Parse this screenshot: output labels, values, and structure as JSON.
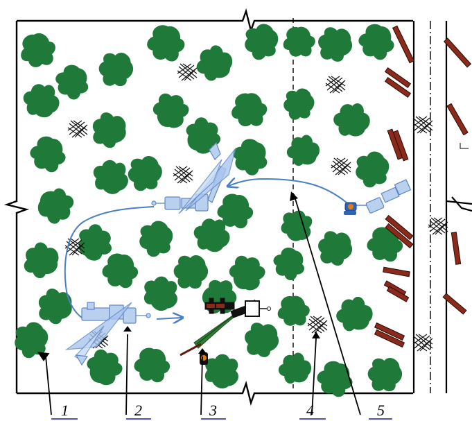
{
  "labels": [
    {
      "id": "1",
      "text": "1"
    },
    {
      "id": "2",
      "text": "2"
    },
    {
      "id": "3",
      "text": "3"
    },
    {
      "id": "4",
      "text": "4"
    },
    {
      "id": "5",
      "text": "5"
    }
  ],
  "colors": {
    "tree_crown": "#1f7a3a",
    "log": "#8a2a1a",
    "log_outline": "#2a0c05",
    "machine_ghost": "#9dbde6",
    "machine_ghost_stroke": "#5f86c6",
    "path": "#4a7fc4",
    "underline": "#1a1a8a",
    "active_machine": "#111111",
    "felling_triangle": "#2e7d32",
    "operator_seat": "#e07a16"
  },
  "icons": [
    "tree-crown-icon",
    "slash-pile-icon",
    "log-icon",
    "forwarder-icon",
    "harvester-icon",
    "felling-zone-icon"
  ]
}
